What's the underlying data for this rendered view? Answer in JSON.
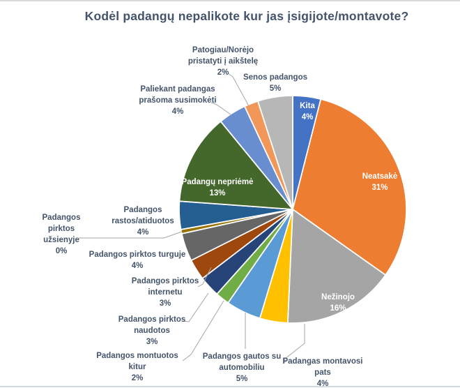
{
  "chart_data": {
    "type": "pie",
    "title": "Kodėl padangų nepalikote kur jas įsigijote/montavote?",
    "legend_position": "none",
    "data_labels": "category name and percentage",
    "start_angle_deg": 0,
    "direction": "clockwise",
    "slices": [
      {
        "name": "kita",
        "label": "Kita",
        "pct": 4,
        "pct_text": "4%",
        "color": "#4472C4",
        "label_placement": "inside",
        "label_lines": [
          "Kita",
          "4%"
        ]
      },
      {
        "name": "neatsake",
        "label": "Neatsakė",
        "pct": 31,
        "pct_text": "31%",
        "color": "#ED7D31",
        "label_placement": "inside",
        "label_lines": [
          "Neatsakė",
          "31%"
        ]
      },
      {
        "name": "nezinojo",
        "label": "Nežinojo",
        "pct": 16,
        "pct_text": "16%",
        "color": "#A5A5A5",
        "label_placement": "inside",
        "label_lines": [
          "Nežinojo",
          "16%"
        ]
      },
      {
        "name": "padangas-montavosi-pats",
        "label": "Padangas montavosi pats",
        "pct": 4,
        "pct_text": "4%",
        "color": "#FFC000",
        "label_placement": "outside",
        "label_lines": [
          "Padangas montavosi",
          "pats",
          "4%"
        ]
      },
      {
        "name": "gautos-su-automobiliu",
        "label": "Padangos gautos su automobiliu",
        "pct": 5,
        "pct_text": "5%",
        "color": "#5B9BD5",
        "label_placement": "outside",
        "label_lines": [
          "Padangos gautos su",
          "automobiliu",
          "5%"
        ]
      },
      {
        "name": "montuotos-kitur",
        "label": "Padangos montuotos kitur",
        "pct": 2,
        "pct_text": "2%",
        "color": "#70AD47",
        "label_placement": "outside",
        "label_lines": [
          "Padangos montuotos",
          "kitur",
          "2%"
        ]
      },
      {
        "name": "pirktos-naudotos",
        "label": "Padangos pirktos naudotos",
        "pct": 3,
        "pct_text": "3%",
        "color": "#264478",
        "label_placement": "outside",
        "label_lines": [
          "Padangos pirktos",
          "naudotos",
          "3%"
        ]
      },
      {
        "name": "pirktos-internetu",
        "label": "Padangos pirktos internetu",
        "pct": 3,
        "pct_text": "3%",
        "color": "#9E480E",
        "label_placement": "outside",
        "label_lines": [
          "Padangos pirktos",
          "internetu",
          "3%"
        ]
      },
      {
        "name": "pirktos-turguje",
        "label": "Padangos pirktos turguje",
        "pct": 4,
        "pct_text": "4%",
        "color": "#666666",
        "label_placement": "outside",
        "label_lines": [
          "Padangos pirktos turguje",
          "4%"
        ]
      },
      {
        "name": "pirktos-uzsienyje",
        "label": "Padangos pirktos užsienyje",
        "pct": 0,
        "pct_text": "0%",
        "color": "#997300",
        "label_placement": "outside",
        "label_lines": [
          "Padangos",
          "pirktos",
          "užsienyje",
          "0%"
        ]
      },
      {
        "name": "rastos-atiduotos",
        "label": "Padangos rastos/atiduotos",
        "pct": 4,
        "pct_text": "4%",
        "color": "#255E91",
        "label_placement": "outside",
        "label_lines": [
          "Padangos",
          "rastos/atiduotos",
          "4%"
        ]
      },
      {
        "name": "padangu-neprieme",
        "label": "Padangų nepriėmė",
        "pct": 13,
        "pct_text": "13%",
        "color": "#44672C",
        "label_placement": "inside",
        "label_lines": [
          "Padangų nepriėmė",
          "13%"
        ]
      },
      {
        "name": "paliekant-susimoketi",
        "label": "Paliekant padangas prašoma susimokėti",
        "pct": 4,
        "pct_text": "4%",
        "color": "#698ED0",
        "label_placement": "outside",
        "label_lines": [
          "Paliekant padangas",
          "prašoma susimokėti",
          "4%"
        ]
      },
      {
        "name": "patogiau-pristatyti",
        "label": "Patogiau/Norėjo pristatyti į aikštelę",
        "pct": 2,
        "pct_text": "2%",
        "color": "#F1975A",
        "label_placement": "outside",
        "label_lines": [
          "Patogiau/Norėjo",
          "pristatyti į aikštelę",
          "2%"
        ]
      },
      {
        "name": "senos-padangos",
        "label": "Senos padangos",
        "pct": 5,
        "pct_text": "5%",
        "color": "#B7B7B7",
        "label_placement": "outside",
        "label_lines": [
          "Senos padangos",
          "5%"
        ]
      }
    ],
    "colors": {
      "title": "#44546A",
      "inside_label": "#FFFFFF",
      "outside_label": "#44546A",
      "leader_line": "#A6A6A6",
      "slice_border": "#FFFFFF",
      "top_border": "#D9D9D9",
      "bottom_border": "#D2D9E2",
      "background": "#FFFFFF"
    }
  }
}
